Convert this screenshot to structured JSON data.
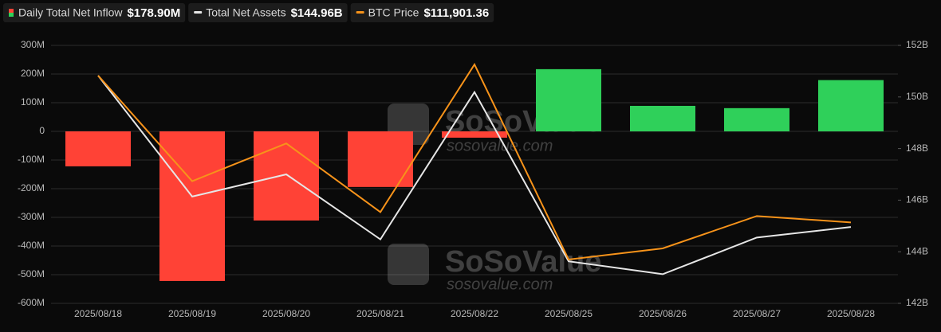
{
  "chart_data": {
    "type": "bar-line",
    "categories": [
      "2025/08/18",
      "2025/08/19",
      "2025/08/20",
      "2025/08/21",
      "2025/08/22",
      "2025/08/25",
      "2025/08/26",
      "2025/08/27",
      "2025/08/28"
    ],
    "series": [
      {
        "name": "Daily Total Net Inflow",
        "type": "bar",
        "legend_value": "$178.90M",
        "positive_color": "#2fd05a",
        "negative_color": "#ff4236",
        "values": [
          -122,
          -522,
          -311,
          -194,
          -22,
          217,
          89,
          81,
          178.9
        ]
      },
      {
        "name": "Total Net Assets",
        "type": "line",
        "axis": "y2",
        "legend_value": "$144.96B",
        "color": "#e6e6e6",
        "values": [
          150.83,
          146.14,
          147.0,
          144.48,
          150.19,
          143.63,
          143.13,
          144.55,
          144.96
        ]
      },
      {
        "name": "BTC Price",
        "type": "line",
        "axis": "y3",
        "legend_value": "$111,901.36",
        "color": "#f7931a",
        "values": [
          115990,
          113050,
          114100,
          112190,
          116300,
          110870,
          111180,
          112080,
          111901.36
        ]
      }
    ],
    "ylim": [
      -600,
      300
    ],
    "yticks": [
      {
        "value": 300,
        "label": "300M"
      },
      {
        "value": 200,
        "label": "200M"
      },
      {
        "value": 100,
        "label": "100M"
      },
      0,
      {
        "value": -100,
        "label": "-100M"
      },
      {
        "value": -200,
        "label": "-200M"
      },
      {
        "value": -300,
        "label": "-300M"
      },
      {
        "value": -400,
        "label": "-400M"
      },
      {
        "value": -500,
        "label": "-500M"
      },
      {
        "value": -600,
        "label": "-600M"
      }
    ],
    "y2lim": [
      142,
      152
    ],
    "y2ticks": [
      {
        "value": 152,
        "label": "152B"
      },
      {
        "value": 150,
        "label": "150B"
      },
      {
        "value": 148,
        "label": "148B"
      },
      {
        "value": 146,
        "label": "146B"
      },
      {
        "value": 144,
        "label": "144B"
      },
      {
        "value": 142,
        "label": "142B"
      }
    ],
    "y3lim": [
      109650,
      116830
    ],
    "grid": true,
    "watermark": {
      "brand": "SoSoValue",
      "site": "sosovalue.com"
    }
  }
}
